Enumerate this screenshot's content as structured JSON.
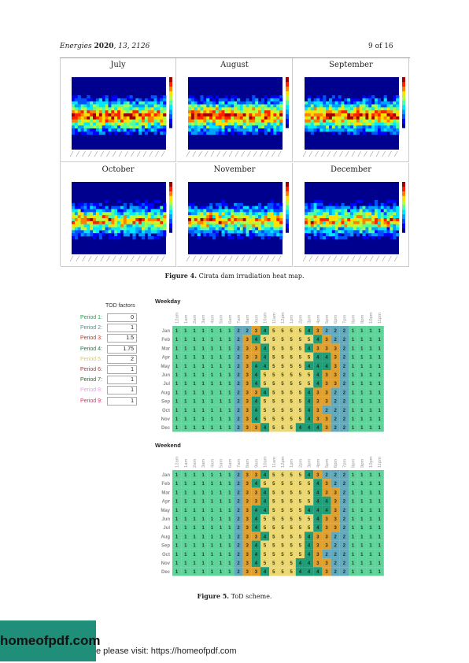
{
  "header": {
    "journal": "Energies",
    "year": "2020",
    "volume": "13",
    "article": "2126",
    "page": "9 of 16"
  },
  "figure4": {
    "panels": [
      "July",
      "August",
      "September",
      "October",
      "November",
      "December"
    ],
    "caption_label": "Figure 4.",
    "caption_text": "Cirata dam irradiation heat map."
  },
  "tod_factors": {
    "title": "TOD factors",
    "periods": [
      {
        "label": "Period 1:",
        "value": "0",
        "color": "#1aa64b"
      },
      {
        "label": "Period 2:",
        "value": "1",
        "color": "#3a9a8c"
      },
      {
        "label": "Period 3:",
        "value": "1.5",
        "color": "#c0392b"
      },
      {
        "label": "Period 4:",
        "value": "1.75",
        "color": "#1a7a44"
      },
      {
        "label": "Period 5:",
        "value": "2",
        "color": "#e0d040"
      },
      {
        "label": "Period 6:",
        "value": "1",
        "color": "#b03a3a"
      },
      {
        "label": "Period 7:",
        "value": "1",
        "color": "#2a6a2a"
      },
      {
        "label": "Period 8:",
        "value": "1",
        "color": "#e6a0e6"
      },
      {
        "label": "Period 9:",
        "value": "1",
        "color": "#e0306a"
      }
    ]
  },
  "chart_data": [
    {
      "type": "heatmap",
      "title": "Weekday",
      "x": [
        "12am",
        "1am",
        "2am",
        "3am",
        "4am",
        "5am",
        "6am",
        "7am",
        "8am",
        "9am",
        "10am",
        "11am",
        "12pm",
        "1pm",
        "2pm",
        "3pm",
        "4pm",
        "5pm",
        "6pm",
        "7pm",
        "8pm",
        "9pm",
        "10pm",
        "11pm"
      ],
      "y": [
        "Jan",
        "Feb",
        "Mar",
        "Apr",
        "May",
        "Jun",
        "Jul",
        "Aug",
        "Sep",
        "Oct",
        "Nov",
        "Dec"
      ],
      "values": [
        [
          1,
          1,
          1,
          1,
          1,
          1,
          1,
          2,
          2,
          3,
          4,
          5,
          5,
          5,
          5,
          4,
          3,
          2,
          2,
          2,
          1,
          1,
          1,
          1
        ],
        [
          1,
          1,
          1,
          1,
          1,
          1,
          1,
          2,
          3,
          4,
          5,
          5,
          5,
          5,
          5,
          5,
          4,
          3,
          2,
          2,
          1,
          1,
          1,
          1
        ],
        [
          1,
          1,
          1,
          1,
          1,
          1,
          1,
          2,
          3,
          3,
          4,
          5,
          5,
          5,
          5,
          4,
          3,
          3,
          3,
          2,
          1,
          1,
          1,
          1
        ],
        [
          1,
          1,
          1,
          1,
          1,
          1,
          1,
          2,
          3,
          3,
          4,
          5,
          5,
          5,
          5,
          5,
          4,
          4,
          3,
          2,
          1,
          1,
          1,
          1
        ],
        [
          1,
          1,
          1,
          1,
          1,
          1,
          1,
          2,
          3,
          4,
          4,
          5,
          5,
          5,
          5,
          4,
          4,
          4,
          3,
          2,
          1,
          1,
          1,
          1
        ],
        [
          1,
          1,
          1,
          1,
          1,
          1,
          1,
          2,
          3,
          4,
          5,
          5,
          5,
          5,
          5,
          5,
          4,
          3,
          3,
          2,
          1,
          1,
          1,
          1
        ],
        [
          1,
          1,
          1,
          1,
          1,
          1,
          1,
          2,
          3,
          4,
          5,
          5,
          5,
          5,
          5,
          5,
          4,
          3,
          3,
          2,
          1,
          1,
          1,
          1
        ],
        [
          1,
          1,
          1,
          1,
          1,
          1,
          1,
          2,
          3,
          3,
          4,
          5,
          5,
          5,
          5,
          4,
          3,
          3,
          2,
          2,
          1,
          1,
          1,
          1
        ],
        [
          1,
          1,
          1,
          1,
          1,
          1,
          1,
          2,
          3,
          4,
          5,
          5,
          5,
          5,
          5,
          4,
          3,
          3,
          2,
          2,
          1,
          1,
          1,
          1
        ],
        [
          1,
          1,
          1,
          1,
          1,
          1,
          1,
          2,
          3,
          4,
          5,
          5,
          5,
          5,
          5,
          4,
          3,
          2,
          2,
          2,
          1,
          1,
          1,
          1
        ],
        [
          1,
          1,
          1,
          1,
          1,
          1,
          1,
          2,
          3,
          4,
          5,
          5,
          5,
          5,
          5,
          4,
          3,
          3,
          2,
          2,
          1,
          1,
          1,
          1
        ],
        [
          1,
          1,
          1,
          1,
          1,
          1,
          1,
          2,
          3,
          3,
          4,
          5,
          5,
          5,
          4,
          4,
          4,
          3,
          2,
          2,
          1,
          1,
          1,
          1
        ]
      ]
    },
    {
      "type": "heatmap",
      "title": "Weekend",
      "x": [
        "12am",
        "1am",
        "2am",
        "3am",
        "4am",
        "5am",
        "6am",
        "7am",
        "8am",
        "9am",
        "10am",
        "11am",
        "12pm",
        "1pm",
        "2pm",
        "3pm",
        "4pm",
        "5pm",
        "6pm",
        "7pm",
        "8pm",
        "9pm",
        "10pm",
        "11pm"
      ],
      "y": [
        "Jan",
        "Feb",
        "Mar",
        "Apr",
        "May",
        "Jun",
        "Jul",
        "Aug",
        "Sep",
        "Oct",
        "Nov",
        "Dec"
      ],
      "values": [
        [
          1,
          1,
          1,
          1,
          1,
          1,
          1,
          2,
          3,
          3,
          4,
          5,
          5,
          5,
          5,
          4,
          3,
          2,
          2,
          2,
          1,
          1,
          1,
          1
        ],
        [
          1,
          1,
          1,
          1,
          1,
          1,
          1,
          2,
          3,
          4,
          5,
          5,
          5,
          5,
          5,
          5,
          4,
          3,
          2,
          2,
          1,
          1,
          1,
          1
        ],
        [
          1,
          1,
          1,
          1,
          1,
          1,
          1,
          2,
          3,
          3,
          4,
          5,
          5,
          5,
          5,
          5,
          4,
          3,
          3,
          2,
          1,
          1,
          1,
          1
        ],
        [
          1,
          1,
          1,
          1,
          1,
          1,
          1,
          2,
          3,
          3,
          4,
          5,
          5,
          5,
          5,
          5,
          4,
          4,
          3,
          2,
          1,
          1,
          1,
          1
        ],
        [
          1,
          1,
          1,
          1,
          1,
          1,
          1,
          2,
          3,
          4,
          4,
          5,
          5,
          5,
          5,
          4,
          4,
          4,
          3,
          2,
          1,
          1,
          1,
          1
        ],
        [
          1,
          1,
          1,
          1,
          1,
          1,
          1,
          2,
          3,
          4,
          5,
          5,
          5,
          5,
          5,
          5,
          4,
          3,
          3,
          2,
          1,
          1,
          1,
          1
        ],
        [
          1,
          1,
          1,
          1,
          1,
          1,
          1,
          2,
          3,
          4,
          5,
          5,
          5,
          5,
          5,
          5,
          4,
          3,
          3,
          2,
          1,
          1,
          1,
          1
        ],
        [
          1,
          1,
          1,
          1,
          1,
          1,
          1,
          2,
          3,
          3,
          4,
          5,
          5,
          5,
          5,
          4,
          3,
          3,
          2,
          2,
          1,
          1,
          1,
          1
        ],
        [
          1,
          1,
          1,
          1,
          1,
          1,
          1,
          2,
          3,
          4,
          5,
          5,
          5,
          5,
          5,
          4,
          3,
          3,
          2,
          2,
          1,
          1,
          1,
          1
        ],
        [
          1,
          1,
          1,
          1,
          1,
          1,
          1,
          2,
          3,
          4,
          5,
          5,
          5,
          5,
          5,
          4,
          3,
          2,
          2,
          2,
          1,
          1,
          1,
          1
        ],
        [
          1,
          1,
          1,
          1,
          1,
          1,
          1,
          2,
          3,
          4,
          5,
          5,
          5,
          5,
          4,
          4,
          3,
          3,
          2,
          2,
          1,
          1,
          1,
          1
        ],
        [
          1,
          1,
          1,
          1,
          1,
          1,
          1,
          2,
          3,
          3,
          4,
          5,
          5,
          5,
          4,
          4,
          4,
          3,
          2,
          2,
          1,
          1,
          1,
          1
        ]
      ],
      "colors": {
        "1": "#5ed39a",
        "2": "#64aabd",
        "3": "#e0a030",
        "4": "#1f9e78",
        "5": "#ecd873"
      }
    }
  ],
  "figure5": {
    "caption_label": "Figure 5.",
    "caption_text": "ToD scheme."
  },
  "footer": {
    "logo": "homeofpdf.com",
    "visit": "e please visit: https://homeofpdf.com"
  }
}
